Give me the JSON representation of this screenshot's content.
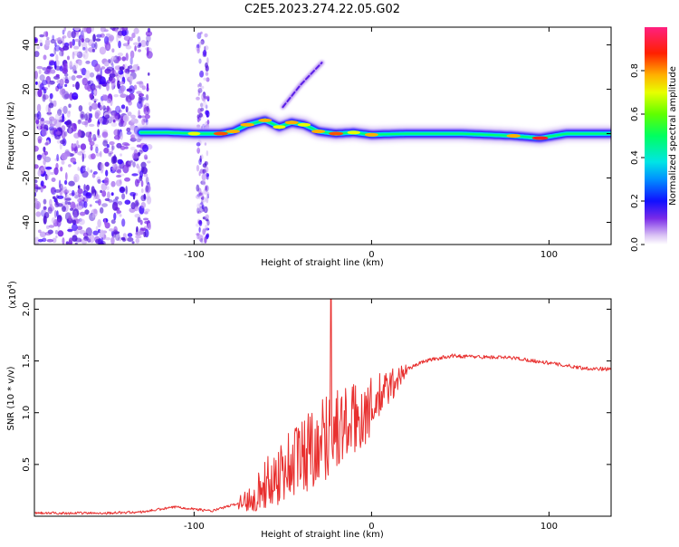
{
  "title": "C2E5.2023.274.22.05.G02",
  "colors": {
    "snr_line": "#e8302f",
    "axis": "#000000"
  },
  "chart_data": [
    {
      "type": "heatmap",
      "name": "spectrogram",
      "xlabel": "Height of straight line (km)",
      "ylabel": "Frequency (Hz)",
      "xlim": [
        -190,
        135
      ],
      "ylim": [
        -50,
        48
      ],
      "x_ticks": [
        -100,
        0,
        100
      ],
      "x_tick_labels": [
        "-100",
        "0",
        "100"
      ],
      "y_ticks": [
        -40,
        -20,
        0,
        20,
        40
      ],
      "y_tick_labels": [
        "-40",
        "-20",
        "0",
        "20",
        "40"
      ],
      "noise_region_x": [
        -190,
        -125
      ],
      "noise_column_x": [
        -98,
        -92
      ],
      "ridge": [
        {
          "x": -130,
          "f": 0.5,
          "amp": 0.45
        },
        {
          "x": -115,
          "f": 0.5,
          "amp": 0.5
        },
        {
          "x": -100,
          "f": 0,
          "amp": 0.6
        },
        {
          "x": -85,
          "f": 0,
          "amp": 0.8
        },
        {
          "x": -78,
          "f": 1,
          "amp": 0.7
        },
        {
          "x": -70,
          "f": 4,
          "amp": 0.75
        },
        {
          "x": -60,
          "f": 6,
          "amp": 0.7
        },
        {
          "x": -52,
          "f": 3,
          "amp": 0.6
        },
        {
          "x": -45,
          "f": 5,
          "amp": 0.7
        },
        {
          "x": -38,
          "f": 4,
          "amp": 0.65
        },
        {
          "x": -30,
          "f": 1,
          "amp": 0.7
        },
        {
          "x": -20,
          "f": 0,
          "amp": 0.8
        },
        {
          "x": -10,
          "f": 0.5,
          "amp": 0.65
        },
        {
          "x": 0,
          "f": -0.5,
          "amp": 0.7
        },
        {
          "x": 20,
          "f": 0,
          "amp": 0.55
        },
        {
          "x": 50,
          "f": 0,
          "amp": 0.5
        },
        {
          "x": 80,
          "f": -1,
          "amp": 0.75
        },
        {
          "x": 95,
          "f": -2,
          "amp": 0.95
        },
        {
          "x": 110,
          "f": 0,
          "amp": 0.55
        },
        {
          "x": 135,
          "f": 0,
          "amp": 0.45
        }
      ],
      "branch": [
        {
          "x": -50,
          "f": 12
        },
        {
          "x": -40,
          "f": 22
        },
        {
          "x": -28,
          "f": 32
        }
      ],
      "colorbar": {
        "label": "Normalized spectral amplitude",
        "ticks": [
          0.0,
          0.2,
          0.4,
          0.6,
          0.8
        ],
        "tick_labels": [
          "0.0",
          "0.2",
          "0.4",
          "0.6",
          "0.8"
        ],
        "range": [
          0,
          1
        ]
      }
    },
    {
      "type": "line",
      "name": "snr",
      "xlabel": "Height of straight line (km)",
      "ylabel": "SNR (10 * v/v)",
      "exponent_label": "(x10",
      "exponent_power": "4",
      "exponent_close": ")",
      "xlim": [
        -190,
        135
      ],
      "ylim": [
        0,
        2.1
      ],
      "x_ticks": [
        -100,
        0,
        100
      ],
      "x_tick_labels": [
        "-100",
        "0",
        "100"
      ],
      "y_ticks": [
        0.5,
        1.0,
        1.5,
        2.0
      ],
      "y_tick_labels": [
        "0.5",
        "1.0",
        "1.5",
        "2.0"
      ],
      "trend": {
        "x": [
          -190,
          -150,
          -130,
          -110,
          -100,
          -90,
          -80,
          -70,
          -60,
          -50,
          -40,
          -30,
          -20,
          -10,
          0,
          10,
          20,
          30,
          45,
          60,
          80,
          100,
          120,
          135
        ],
        "y": [
          0.03,
          0.03,
          0.04,
          0.09,
          0.07,
          0.05,
          0.1,
          0.15,
          0.3,
          0.45,
          0.58,
          0.73,
          0.83,
          0.92,
          1.05,
          1.25,
          1.42,
          1.5,
          1.55,
          1.54,
          1.53,
          1.48,
          1.43,
          1.42
        ]
      },
      "spike": {
        "x": -23,
        "y": 2.1
      }
    }
  ]
}
